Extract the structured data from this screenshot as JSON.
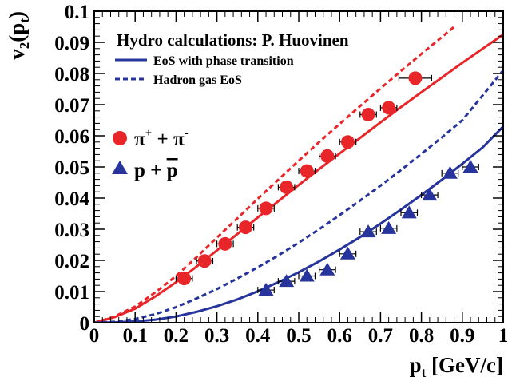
{
  "chart_data": {
    "type": "scatter",
    "title": "",
    "xlabel_main": "p",
    "xlabel_sub": "t",
    "xlabel_rest": " [GeV/c]",
    "ylabel_main": "v",
    "ylabel_sub1": "2",
    "ylabel_mid": "(p",
    "ylabel_sub2": "t",
    "ylabel_end": ")",
    "xlim": [
      0,
      1
    ],
    "ylim": [
      0,
      0.1
    ],
    "x_ticks": [
      "0",
      "0.1",
      "0.2",
      "0.3",
      "0.4",
      "0.5",
      "0.6",
      "0.7",
      "0.8",
      "0.9",
      "1"
    ],
    "y_ticks": [
      "0",
      "0.01",
      "0.02",
      "0.03",
      "0.04",
      "0.05",
      "0.06",
      "0.07",
      "0.08",
      "0.09",
      "0.1"
    ],
    "grid": false,
    "legend_position": "top-left",
    "annotation": "Hydro calculations: P. Huovinen",
    "line_legend": [
      {
        "label": "EoS with phase transition",
        "style": "solid"
      },
      {
        "label": "Hadron gas EoS",
        "style": "dashed"
      }
    ],
    "marker_legend": [
      {
        "label_main": "π",
        "sup1": "+",
        "label_mid": " + π",
        "sup2": "-",
        "marker": "circle",
        "color": "#e8262a"
      },
      {
        "label_text": "p + ",
        "label_bar": "p",
        "marker": "triangle",
        "color": "#26349b"
      }
    ],
    "series": [
      {
        "kind": "points",
        "marker": "circle",
        "color": "#e8262a",
        "x": [
          0.22,
          0.27,
          0.32,
          0.37,
          0.42,
          0.47,
          0.52,
          0.57,
          0.62,
          0.67,
          0.72,
          0.785
        ],
        "y": [
          0.0142,
          0.0198,
          0.0253,
          0.0306,
          0.0367,
          0.0435,
          0.0487,
          0.0535,
          0.058,
          0.0668,
          0.069,
          0.0785
        ],
        "x_err": [
          0.02,
          0.02,
          0.02,
          0.02,
          0.02,
          0.02,
          0.02,
          0.02,
          0.02,
          0.02,
          0.02,
          0.04
        ]
      },
      {
        "kind": "points",
        "marker": "triangle",
        "color": "#26349b",
        "x": [
          0.42,
          0.47,
          0.52,
          0.57,
          0.62,
          0.67,
          0.72,
          0.77,
          0.82,
          0.87,
          0.92
        ],
        "y": [
          0.0105,
          0.0133,
          0.015,
          0.017,
          0.0221,
          0.0292,
          0.0303,
          0.0353,
          0.041,
          0.048,
          0.05
        ],
        "x_err": [
          0.02,
          0.02,
          0.02,
          0.02,
          0.02,
          0.02,
          0.02,
          0.02,
          0.02,
          0.02,
          0.02
        ]
      },
      {
        "kind": "line",
        "style": "solid",
        "color": "#e8262a",
        "x": [
          0,
          0.05,
          0.1,
          0.15,
          0.2,
          0.25,
          0.3,
          0.35,
          0.4,
          0.45,
          0.5,
          0.55,
          0.6,
          0.65,
          0.7,
          0.75,
          0.8,
          0.85,
          0.9,
          0.95,
          1.0
        ],
        "y": [
          0,
          0.0018,
          0.0045,
          0.0085,
          0.013,
          0.018,
          0.0232,
          0.0285,
          0.0338,
          0.039,
          0.0442,
          0.0493,
          0.0543,
          0.0593,
          0.0643,
          0.0692,
          0.074,
          0.0787,
          0.0834,
          0.088,
          0.0925
        ]
      },
      {
        "kind": "line",
        "style": "dashed",
        "color": "#e8262a",
        "x": [
          0,
          0.05,
          0.1,
          0.15,
          0.2,
          0.25,
          0.3,
          0.35,
          0.4,
          0.45,
          0.5,
          0.55,
          0.6,
          0.65,
          0.7,
          0.75,
          0.8,
          0.85,
          0.88
        ],
        "y": [
          0,
          0.002,
          0.0052,
          0.0098,
          0.015,
          0.021,
          0.0273,
          0.0335,
          0.0398,
          0.0459,
          0.052,
          0.058,
          0.0638,
          0.0695,
          0.0752,
          0.0808,
          0.0863,
          0.0917,
          0.095
        ]
      },
      {
        "kind": "line",
        "style": "solid",
        "color": "#26349b",
        "x": [
          0,
          0.05,
          0.1,
          0.15,
          0.2,
          0.25,
          0.3,
          0.35,
          0.4,
          0.45,
          0.5,
          0.55,
          0.6,
          0.65,
          0.7,
          0.75,
          0.8,
          0.85,
          0.9,
          0.95,
          1.0
        ],
        "y": [
          0,
          0.0001,
          0.0004,
          0.001,
          0.002,
          0.0035,
          0.0053,
          0.0075,
          0.0101,
          0.013,
          0.0162,
          0.0197,
          0.0235,
          0.0275,
          0.0318,
          0.0363,
          0.041,
          0.0459,
          0.051,
          0.0563,
          0.063
        ]
      },
      {
        "kind": "line",
        "style": "dashed",
        "color": "#26349b",
        "x": [
          0,
          0.05,
          0.1,
          0.15,
          0.2,
          0.25,
          0.3,
          0.35,
          0.4,
          0.45,
          0.5,
          0.55,
          0.6,
          0.65,
          0.7,
          0.75,
          0.8,
          0.85,
          0.9,
          0.95,
          1.0
        ],
        "y": [
          0,
          0.0003,
          0.0012,
          0.0028,
          0.005,
          0.0078,
          0.0108,
          0.0142,
          0.0178,
          0.0216,
          0.0257,
          0.03,
          0.0345,
          0.0392,
          0.044,
          0.049,
          0.0542,
          0.0595,
          0.065,
          0.073,
          0.081
        ]
      }
    ]
  }
}
